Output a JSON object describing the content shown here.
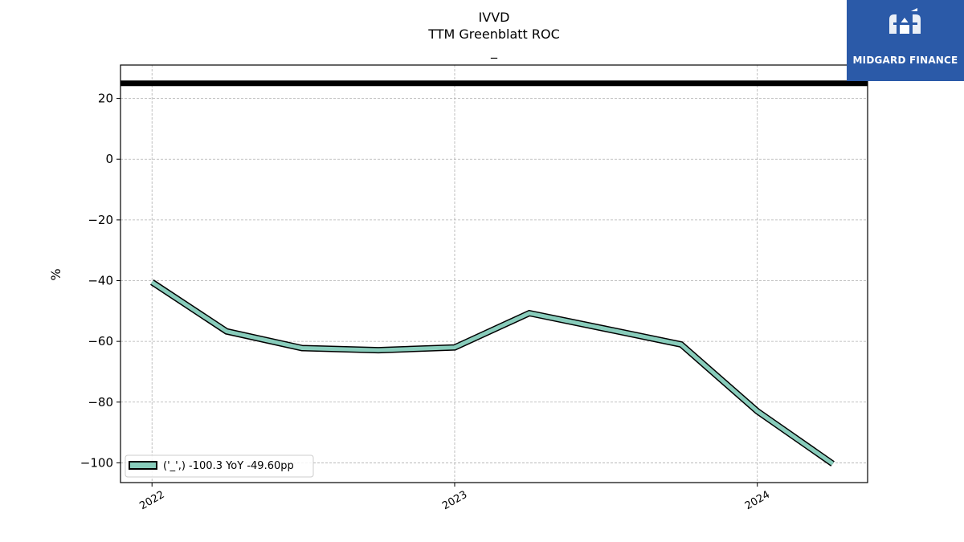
{
  "chart_data": {
    "type": "line",
    "title": "IVVD",
    "subtitle": "TTM Greenblatt ROC",
    "subtitle2": "_",
    "ylabel": "%",
    "xlabel": "",
    "ylim": [
      -106.5,
      31
    ],
    "xlim": [
      "2021-11-24",
      "2024-05-13"
    ],
    "yticks": [
      20,
      0,
      -20,
      -40,
      -60,
      -80,
      -100
    ],
    "ytick_labels": [
      "20",
      "0",
      "−20",
      "−40",
      "−60",
      "−80",
      "−100"
    ],
    "xticks": [
      "2022-01-01",
      "2023-01-01",
      "2024-01-01"
    ],
    "xtick_labels": [
      "2022",
      "2023",
      "2024"
    ],
    "grid": true,
    "reference_line": {
      "y": 25,
      "color": "#000000"
    },
    "series": [
      {
        "name": "('_',) -100.3 YoY -49.60pp",
        "color": "#88ccbb",
        "x": [
          "2022-01-01",
          "2022-04-01",
          "2022-07-01",
          "2022-10-01",
          "2023-01-01",
          "2023-04-01",
          "2023-07-01",
          "2023-10-01",
          "2024-01-01",
          "2024-04-01"
        ],
        "values": [
          -40.5,
          -56.7,
          -62.2,
          -62.9,
          -62.0,
          -50.7,
          -55.8,
          -61.0,
          -83.0,
          -100.3
        ]
      }
    ],
    "legend_position": "lower-left"
  },
  "logo": {
    "text": "MIDGARD FINANCE"
  }
}
